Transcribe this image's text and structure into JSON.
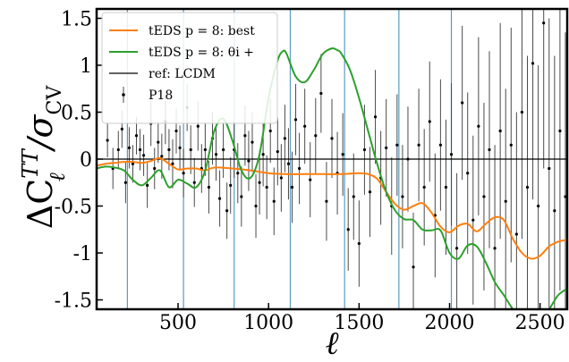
{
  "chart_data": {
    "type": "line",
    "xlabel": "ℓ",
    "ylabel_main": "ΔC",
    "ylabel_sub": "ℓ",
    "ylabel_sup": "TT",
    "ylabel_div": "/σ",
    "ylabel_div_sub": "CV",
    "xlim": [
      50,
      2650
    ],
    "ylim": [
      -1.6,
      1.6
    ],
    "x_ticks": [
      500,
      1000,
      1500,
      2000,
      2500
    ],
    "x_tick_labels": [
      "500",
      "1000",
      "1500",
      "2000",
      "2500"
    ],
    "y_ticks": [
      1.5,
      1,
      0.5,
      0,
      -0.5,
      -1,
      -1.5
    ],
    "y_tick_labels": [
      "1.5",
      "1",
      "0.5",
      "0",
      "-0.5",
      "-1",
      "-1.5"
    ],
    "vertical_lines": [
      220,
      530,
      810,
      1120,
      1420,
      1720,
      2010
    ],
    "reference_line": {
      "y": 0,
      "color": "#000000"
    },
    "legend_position": "top-left",
    "legend": [
      {
        "label": "tEDS p = 8: best",
        "color": "#ff7f0e",
        "kind": "line"
      },
      {
        "label": "tEDS p = 8: θi +",
        "color": "#2ca02c",
        "kind": "line"
      },
      {
        "label": "ref: LCDM",
        "color": "#000000",
        "kind": "line"
      },
      {
        "label": "P18",
        "color": "#000000",
        "kind": "errorbar"
      }
    ],
    "series": [
      {
        "name": "tEDS p = 8: best",
        "color": "#ff7f0e",
        "x": [
          50,
          100,
          150,
          200,
          250,
          300,
          350,
          400,
          450,
          500,
          550,
          600,
          650,
          700,
          800,
          900,
          1000,
          1100,
          1200,
          1300,
          1400,
          1500,
          1550,
          1600,
          1650,
          1700,
          1750,
          1800,
          1850,
          1900,
          1950,
          2000,
          2050,
          2100,
          2150,
          2200,
          2250,
          2300,
          2350,
          2400,
          2450,
          2500,
          2550,
          2600,
          2650
        ],
        "y": [
          -0.07,
          -0.05,
          -0.04,
          -0.03,
          -0.03,
          -0.04,
          -0.02,
          0.01,
          -0.05,
          -0.11,
          -0.1,
          -0.1,
          -0.12,
          -0.09,
          -0.1,
          -0.12,
          -0.15,
          -0.16,
          -0.16,
          -0.16,
          -0.16,
          -0.15,
          -0.16,
          -0.21,
          -0.35,
          -0.48,
          -0.54,
          -0.5,
          -0.47,
          -0.57,
          -0.72,
          -0.78,
          -0.71,
          -0.69,
          -0.77,
          -0.69,
          -0.62,
          -0.65,
          -0.85,
          -1.0,
          -1.06,
          -1.03,
          -0.93,
          -0.88,
          -0.86
        ]
      },
      {
        "name": "tEDS p = 8: θi +",
        "color": "#2ca02c",
        "x": [
          50,
          100,
          150,
          200,
          250,
          300,
          350,
          400,
          450,
          500,
          550,
          600,
          650,
          700,
          750,
          800,
          850,
          900,
          950,
          1000,
          1050,
          1080,
          1100,
          1150,
          1200,
          1250,
          1300,
          1350,
          1380,
          1400,
          1450,
          1500,
          1550,
          1600,
          1650,
          1700,
          1750,
          1800,
          1850,
          1900,
          1950,
          2000,
          2050,
          2100,
          2150,
          2200,
          2250,
          2300,
          2350,
          2400,
          2450,
          2500,
          2550,
          2600,
          2650
        ],
        "y": [
          -0.1,
          -0.08,
          -0.09,
          -0.12,
          -0.22,
          -0.28,
          -0.2,
          -0.12,
          -0.3,
          -0.22,
          -0.26,
          -0.3,
          -0.12,
          0.3,
          0.43,
          0.2,
          -0.12,
          -0.2,
          0.05,
          0.65,
          1.05,
          1.15,
          1.12,
          0.88,
          0.82,
          0.95,
          1.12,
          1.18,
          1.16,
          1.13,
          0.95,
          0.65,
          0.3,
          -0.05,
          -0.35,
          -0.55,
          -0.64,
          -0.65,
          -0.75,
          -0.76,
          -0.76,
          -1.0,
          -1.06,
          -0.92,
          -0.93,
          -1.1,
          -1.31,
          -1.45,
          -1.6,
          -1.7,
          -1.75,
          -1.72,
          -1.6,
          -1.45,
          -1.38
        ]
      }
    ],
    "errorbars": {
      "name": "P18",
      "color": "#000000",
      "points": [
        [
          110,
          0.2,
          0.18
        ],
        [
          140,
          -0.1,
          0.22
        ],
        [
          170,
          0.1,
          0.2
        ],
        [
          190,
          0.32,
          0.2
        ],
        [
          210,
          -0.25,
          0.22
        ],
        [
          230,
          0.12,
          0.22
        ],
        [
          250,
          -0.05,
          0.2
        ],
        [
          270,
          0.25,
          0.2
        ],
        [
          290,
          0.1,
          0.22
        ],
        [
          310,
          0.04,
          0.22
        ],
        [
          330,
          -0.28,
          0.24
        ],
        [
          350,
          0.38,
          0.24
        ],
        [
          370,
          -0.1,
          0.22
        ],
        [
          390,
          0.18,
          0.22
        ],
        [
          410,
          0.03,
          0.24
        ],
        [
          430,
          0.4,
          0.24
        ],
        [
          450,
          0.1,
          0.22
        ],
        [
          470,
          -0.05,
          0.26
        ],
        [
          490,
          0.3,
          0.24
        ],
        [
          510,
          0.12,
          0.24
        ],
        [
          530,
          -0.15,
          0.26
        ],
        [
          550,
          0.55,
          0.25
        ],
        [
          570,
          0.1,
          0.26
        ],
        [
          590,
          -0.25,
          0.26
        ],
        [
          610,
          0.35,
          0.26
        ],
        [
          630,
          -0.1,
          0.26
        ],
        [
          650,
          0.1,
          0.28
        ],
        [
          670,
          -0.3,
          0.28
        ],
        [
          690,
          0.22,
          0.28
        ],
        [
          710,
          0.05,
          0.28
        ],
        [
          730,
          -0.42,
          0.3
        ],
        [
          750,
          0.1,
          0.3
        ],
        [
          770,
          -0.55,
          0.3
        ],
        [
          790,
          -0.28,
          0.3
        ],
        [
          810,
          0.1,
          0.3
        ],
        [
          830,
          -0.15,
          0.32
        ],
        [
          850,
          -0.4,
          0.32
        ],
        [
          870,
          0.25,
          0.32
        ],
        [
          890,
          -0.02,
          0.32
        ],
        [
          910,
          0.18,
          0.32
        ],
        [
          930,
          -0.5,
          0.34
        ],
        [
          950,
          -0.25,
          0.34
        ],
        [
          970,
          0.05,
          0.34
        ],
        [
          990,
          -0.3,
          0.34
        ],
        [
          1010,
          0.3,
          0.34
        ],
        [
          1030,
          -0.45,
          0.36
        ],
        [
          1050,
          0.08,
          0.36
        ],
        [
          1070,
          -0.2,
          0.36
        ],
        [
          1090,
          0.22,
          0.36
        ],
        [
          1110,
          -0.05,
          0.38
        ],
        [
          1130,
          -0.3,
          0.38
        ],
        [
          1150,
          0.42,
          0.38
        ],
        [
          1170,
          -0.1,
          0.38
        ],
        [
          1200,
          0.35,
          0.4
        ],
        [
          1230,
          -0.22,
          0.4
        ],
        [
          1260,
          0.25,
          0.4
        ],
        [
          1290,
          0.7,
          0.42
        ],
        [
          1320,
          -0.45,
          0.42
        ],
        [
          1350,
          0.22,
          0.42
        ],
        [
          1380,
          -0.15,
          0.44
        ],
        [
          1410,
          0.05,
          0.44
        ],
        [
          1440,
          -0.75,
          0.44
        ],
        [
          1470,
          -0.4,
          0.46
        ],
        [
          1500,
          -0.9,
          0.46
        ],
        [
          1530,
          0.1,
          0.48
        ],
        [
          1560,
          -0.35,
          0.48
        ],
        [
          1590,
          0.45,
          0.5
        ],
        [
          1620,
          -0.2,
          0.5
        ],
        [
          1650,
          0.12,
          0.52
        ],
        [
          1680,
          -0.5,
          0.52
        ],
        [
          1710,
          0.15,
          0.54
        ],
        [
          1740,
          -0.4,
          0.55
        ],
        [
          1770,
          0.0,
          0.56
        ],
        [
          1800,
          -1.15,
          0.58
        ],
        [
          1830,
          0.15,
          0.6
        ],
        [
          1860,
          -0.3,
          0.62
        ],
        [
          1890,
          0.4,
          0.64
        ],
        [
          1920,
          -0.6,
          0.66
        ],
        [
          1950,
          0.15,
          0.7
        ],
        [
          1980,
          -0.3,
          0.72
        ],
        [
          2010,
          0.05,
          0.76
        ],
        [
          2040,
          -0.95,
          0.8
        ],
        [
          2070,
          0.6,
          0.82
        ],
        [
          2100,
          -0.15,
          0.86
        ],
        [
          2130,
          -0.65,
          0.9
        ],
        [
          2160,
          0.35,
          0.95
        ],
        [
          2190,
          -0.4,
          1.0
        ],
        [
          2220,
          0.1,
          1.05
        ],
        [
          2250,
          -0.95,
          1.1
        ],
        [
          2280,
          0.3,
          1.15
        ],
        [
          2310,
          -0.45,
          1.2
        ],
        [
          2340,
          0.15,
          1.25
        ],
        [
          2370,
          -0.8,
          1.3
        ],
        [
          2400,
          0.5,
          1.35
        ],
        [
          2430,
          -0.3,
          1.4
        ],
        [
          2460,
          1.02,
          1.45
        ],
        [
          2490,
          -0.5,
          1.5
        ],
        [
          2520,
          1.45,
          1.55
        ],
        [
          2550,
          -0.1,
          1.6
        ],
        [
          2580,
          -0.55,
          1.65
        ],
        [
          2610,
          0.3,
          1.7
        ],
        [
          2640,
          -0.4,
          1.75
        ]
      ]
    }
  }
}
